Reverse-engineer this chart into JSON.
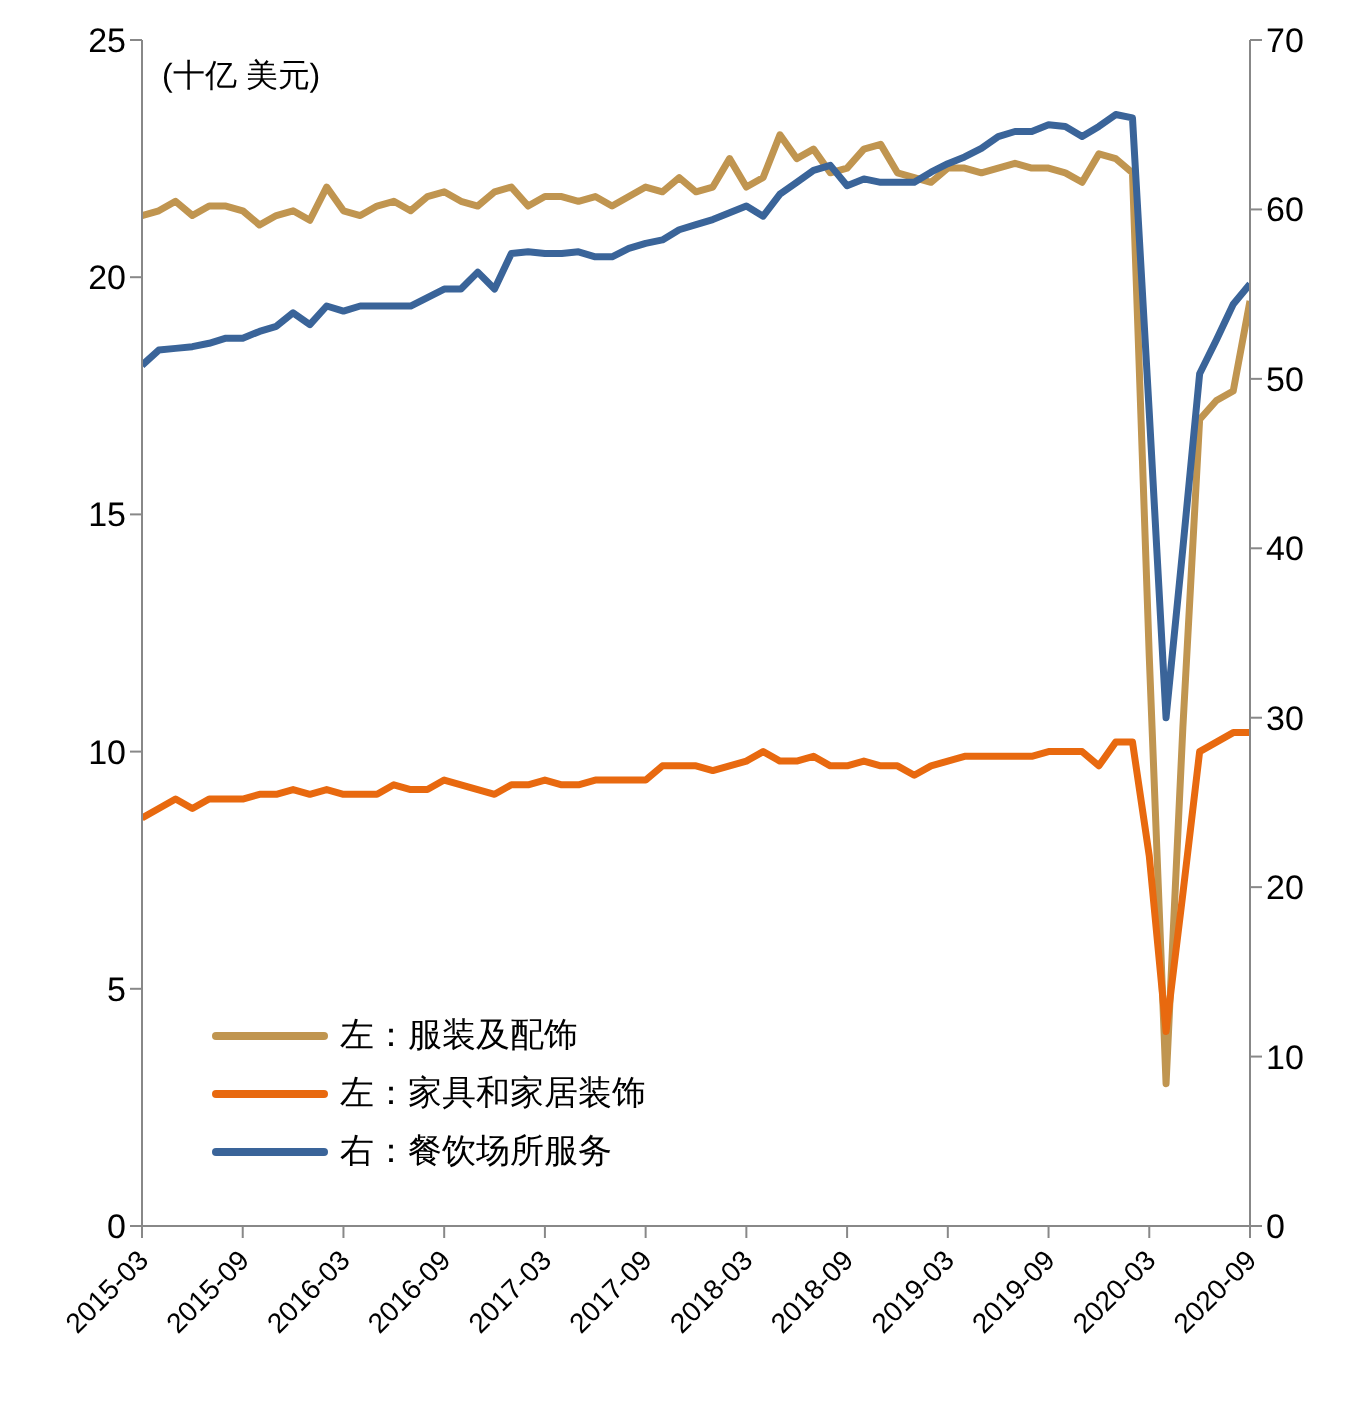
{
  "chart_data": {
    "type": "line",
    "categories": [
      "2015-03",
      null,
      null,
      null,
      null,
      null,
      "2015-09",
      null,
      null,
      null,
      null,
      null,
      "2016-03",
      null,
      null,
      null,
      null,
      null,
      "2016-09",
      null,
      null,
      null,
      null,
      null,
      "2017-03",
      null,
      null,
      null,
      null,
      null,
      "2017-09",
      null,
      null,
      null,
      null,
      null,
      "2018-03",
      null,
      null,
      null,
      null,
      null,
      "2018-09",
      null,
      null,
      null,
      null,
      null,
      "2019-03",
      null,
      null,
      null,
      null,
      null,
      "2019-09",
      null,
      null,
      null,
      null,
      null,
      "2020-03",
      null,
      null,
      null,
      null,
      null,
      "2020-09"
    ],
    "series": [
      {
        "name": "左：服装及配饰",
        "color": "#c09550",
        "values": [
          21.3,
          21.4,
          21.6,
          21.3,
          21.5,
          21.5,
          21.4,
          21.1,
          21.3,
          21.4,
          21.2,
          21.9,
          21.4,
          21.3,
          21.5,
          21.6,
          21.4,
          21.7,
          21.8,
          21.6,
          21.5,
          21.8,
          21.9,
          21.5,
          21.7,
          21.7,
          21.6,
          21.7,
          21.5,
          21.7,
          21.9,
          21.8,
          22.1,
          21.8,
          21.9,
          22.5,
          21.9,
          22.1,
          23.0,
          22.5,
          22.7,
          22.2,
          22.3,
          22.7,
          22.8,
          22.2,
          22.1,
          22.0,
          22.3,
          22.3,
          22.2,
          22.3,
          22.4,
          22.3,
          22.3,
          22.2,
          22.0,
          22.6,
          22.5,
          22.2,
          12.0,
          3.0,
          10.5,
          17.0,
          17.4,
          17.6,
          19.5
        ]
      },
      {
        "name": "左：家具和家居装饰",
        "color": "#e8690f",
        "values": [
          8.6,
          8.8,
          9.0,
          8.8,
          9.0,
          9.0,
          9.0,
          9.1,
          9.1,
          9.2,
          9.1,
          9.2,
          9.1,
          9.1,
          9.1,
          9.3,
          9.2,
          9.2,
          9.4,
          9.3,
          9.2,
          9.1,
          9.3,
          9.3,
          9.4,
          9.3,
          9.3,
          9.4,
          9.4,
          9.4,
          9.4,
          9.7,
          9.7,
          9.7,
          9.6,
          9.7,
          9.8,
          10.0,
          9.8,
          9.8,
          9.9,
          9.7,
          9.7,
          9.8,
          9.7,
          9.7,
          9.5,
          9.7,
          9.8,
          9.9,
          9.9,
          9.9,
          9.9,
          9.9,
          10.0,
          10.0,
          10.0,
          9.7,
          10.2,
          10.2,
          7.8,
          4.1,
          7.0,
          10.0,
          10.2,
          10.4,
          10.4
        ]
      },
      {
        "name": "右：餐饮场所服务",
        "color": "#3a6499",
        "axis": "y2",
        "values": [
          50.8,
          51.7,
          51.8,
          51.9,
          52.1,
          52.4,
          52.4,
          52.8,
          53.1,
          53.9,
          53.2,
          54.3,
          54.0,
          54.3,
          54.3,
          54.3,
          54.3,
          54.8,
          55.3,
          55.3,
          56.3,
          55.3,
          57.4,
          57.5,
          57.4,
          57.4,
          57.5,
          57.2,
          57.2,
          57.7,
          58.0,
          58.2,
          58.8,
          59.1,
          59.4,
          59.8,
          60.2,
          59.6,
          60.9,
          61.6,
          62.3,
          62.6,
          61.4,
          61.8,
          61.6,
          61.6,
          61.6,
          62.2,
          62.7,
          63.1,
          63.6,
          64.3,
          64.6,
          64.6,
          65.0,
          64.9,
          64.3,
          64.9,
          65.6,
          65.4,
          48.0,
          30.0,
          40.0,
          50.3,
          52.3,
          54.4,
          55.6
        ]
      }
    ],
    "ylim": [
      0,
      25
    ],
    "yticks": [
      0,
      5,
      10,
      15,
      20,
      25
    ],
    "y2lim": [
      0,
      70
    ],
    "y2ticks": [
      0,
      10,
      20,
      30,
      40,
      50,
      60,
      70
    ],
    "legend": "bottom left",
    "grid": false,
    "annotations": [
      "(十亿 美元)"
    ]
  }
}
